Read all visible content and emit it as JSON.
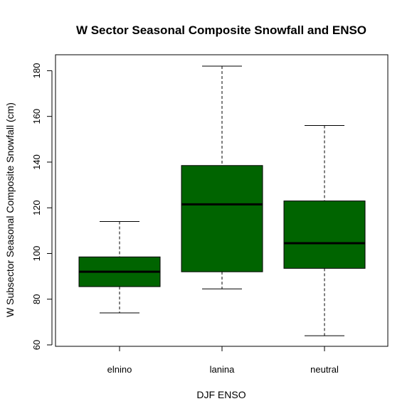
{
  "chart_data": {
    "type": "box",
    "title": "W Sector Seasonal Composite Snowfall and ENSO",
    "xlabel": "DJF ENSO",
    "ylabel": "W Subsector Seasonal Composite Snowfall (cm)",
    "ylim": [
      60,
      187
    ],
    "yticks": [
      60,
      80,
      100,
      120,
      140,
      160,
      180
    ],
    "categories": [
      "elnino",
      "lanina",
      "neutral"
    ],
    "boxes": [
      {
        "category": "elnino",
        "min": 74,
        "q1": 85.5,
        "median": 92,
        "q3": 98.5,
        "max": 114
      },
      {
        "category": "lanina",
        "min": 84.5,
        "q1": 92,
        "median": 121.5,
        "q3": 138.5,
        "max": 182
      },
      {
        "category": "neutral",
        "min": 64,
        "q1": 93.5,
        "median": 104.5,
        "q3": 123,
        "max": 156
      }
    ],
    "box_fill": "#006400",
    "grid": false,
    "legend": "none"
  }
}
